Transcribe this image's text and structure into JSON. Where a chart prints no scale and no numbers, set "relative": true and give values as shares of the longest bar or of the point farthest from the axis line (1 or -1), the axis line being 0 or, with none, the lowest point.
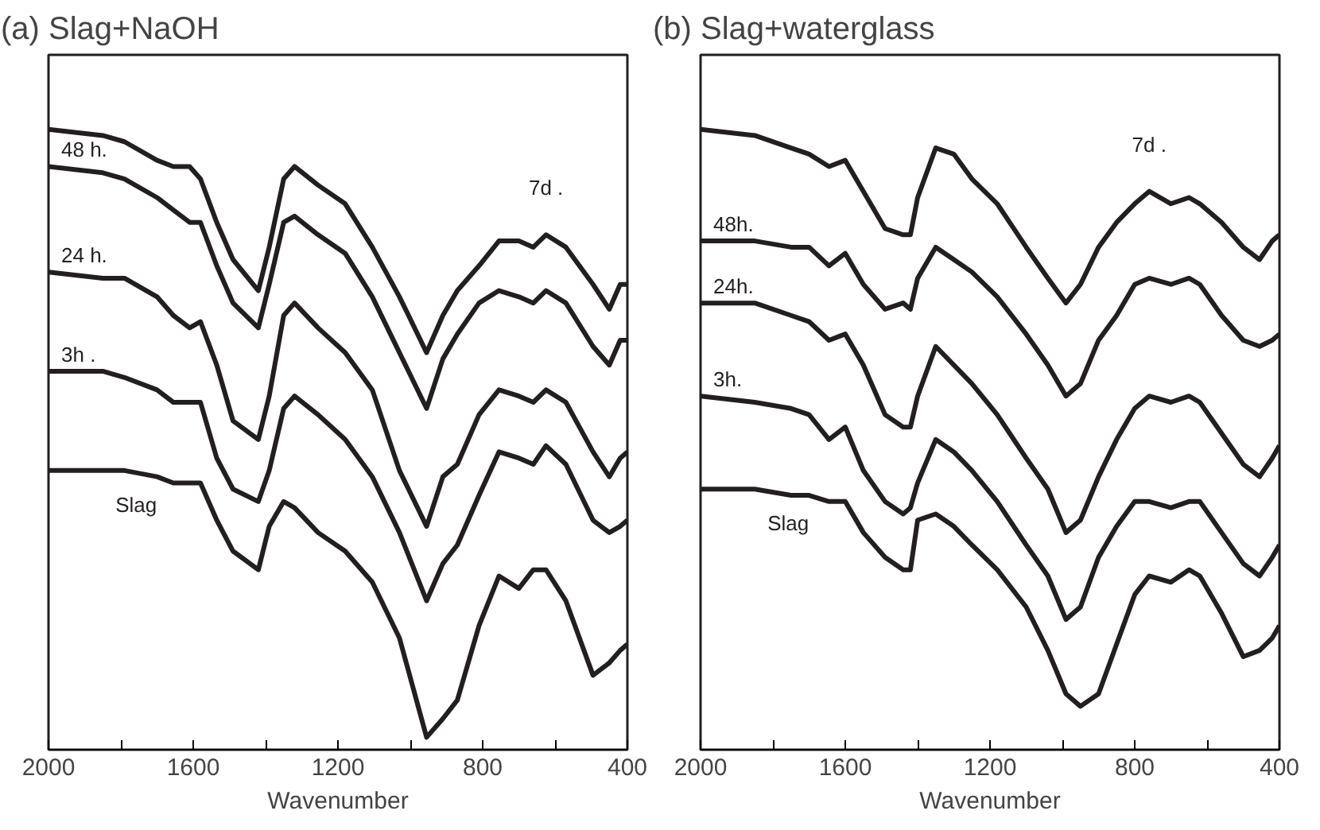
{
  "chart_data": [
    {
      "type": "line",
      "title": "(a) Slag+NaOH",
      "xlabel": "Wavenumber",
      "relative": true,
      "xlim": [
        2000,
        400
      ],
      "xticks": [
        2000,
        {
          "value": 1800,
          "label": null
        },
        1600,
        {
          "value": 1400,
          "label": null
        },
        1200,
        {
          "value": 1000,
          "label": null
        },
        800,
        {
          "value": 600,
          "label": null
        },
        400
      ],
      "x": [
        2000,
        1850,
        1790,
        1700,
        1655,
        1610,
        1580,
        1535,
        1490,
        1420,
        1390,
        1350,
        1320,
        1255,
        1180,
        1105,
        1030,
        955,
        910,
        870,
        810,
        755,
        700,
        660,
        625,
        570,
        495,
        450,
        420,
        400
      ],
      "series": [
        {
          "name": "7d .",
          "color": "#231f20",
          "values": [
            1.0,
            0.99,
            0.98,
            0.95,
            0.94,
            0.94,
            0.92,
            0.85,
            0.79,
            0.74,
            0.81,
            0.92,
            0.94,
            0.91,
            0.88,
            0.81,
            0.73,
            0.64,
            0.7,
            0.74,
            0.78,
            0.82,
            0.82,
            0.81,
            0.83,
            0.81,
            0.75,
            0.71,
            0.75,
            0.75
          ]
        },
        {
          "name": "48 h.",
          "color": "#231f20",
          "values": [
            0.94,
            0.93,
            0.92,
            0.89,
            0.87,
            0.85,
            0.85,
            0.78,
            0.72,
            0.68,
            0.75,
            0.85,
            0.86,
            0.83,
            0.8,
            0.73,
            0.64,
            0.55,
            0.63,
            0.67,
            0.72,
            0.74,
            0.73,
            0.72,
            0.74,
            0.72,
            0.65,
            0.62,
            0.66,
            0.66
          ]
        },
        {
          "name": "24 h.",
          "color": "#231f20",
          "values": [
            0.77,
            0.76,
            0.76,
            0.73,
            0.7,
            0.68,
            0.69,
            0.62,
            0.53,
            0.5,
            0.57,
            0.7,
            0.72,
            0.68,
            0.64,
            0.58,
            0.45,
            0.36,
            0.44,
            0.46,
            0.54,
            0.58,
            0.57,
            0.56,
            0.58,
            0.56,
            0.48,
            0.44,
            0.47,
            0.48
          ]
        },
        {
          "name": "3h .",
          "color": "#231f20",
          "values": [
            0.61,
            0.61,
            0.6,
            0.58,
            0.56,
            0.56,
            0.56,
            0.47,
            0.42,
            0.4,
            0.45,
            0.55,
            0.57,
            0.54,
            0.5,
            0.44,
            0.35,
            0.24,
            0.3,
            0.33,
            0.41,
            0.48,
            0.47,
            0.46,
            0.49,
            0.46,
            0.37,
            0.35,
            0.36,
            0.37
          ]
        },
        {
          "name": "Slag",
          "color": "#231f20",
          "values": [
            0.45,
            0.45,
            0.45,
            0.44,
            0.43,
            0.43,
            0.43,
            0.37,
            0.32,
            0.29,
            0.36,
            0.4,
            0.39,
            0.35,
            0.32,
            0.27,
            0.18,
            0.02,
            0.05,
            0.08,
            0.2,
            0.28,
            0.26,
            0.29,
            0.29,
            0.24,
            0.12,
            0.14,
            0.16,
            0.17
          ]
        }
      ]
    },
    {
      "type": "line",
      "title": "(b) Slag+waterglass",
      "xlabel": "Wavenumber",
      "relative": true,
      "xlim": [
        2000,
        400
      ],
      "xticks": [
        2000,
        {
          "value": 1800,
          "label": null
        },
        1600,
        {
          "value": 1400,
          "label": null
        },
        1200,
        {
          "value": 1000,
          "label": null
        },
        800,
        {
          "value": 600,
          "label": null
        },
        400
      ],
      "x": [
        2000,
        1850,
        1750,
        1700,
        1645,
        1600,
        1550,
        1490,
        1440,
        1420,
        1400,
        1350,
        1300,
        1250,
        1180,
        1100,
        1040,
        990,
        950,
        900,
        850,
        800,
        760,
        700,
        650,
        620,
        560,
        500,
        455,
        420,
        400
      ],
      "series": [
        {
          "name": "7d .",
          "color": "#231f20",
          "values": [
            1.0,
            0.99,
            0.97,
            0.96,
            0.94,
            0.95,
            0.9,
            0.84,
            0.83,
            0.83,
            0.89,
            0.97,
            0.96,
            0.92,
            0.88,
            0.81,
            0.76,
            0.72,
            0.75,
            0.81,
            0.85,
            0.88,
            0.9,
            0.88,
            0.89,
            0.88,
            0.85,
            0.81,
            0.79,
            0.82,
            0.83
          ]
        },
        {
          "name": "48h.",
          "color": "#231f20",
          "values": [
            0.82,
            0.82,
            0.81,
            0.81,
            0.78,
            0.8,
            0.75,
            0.71,
            0.72,
            0.71,
            0.76,
            0.81,
            0.79,
            0.77,
            0.73,
            0.67,
            0.62,
            0.57,
            0.59,
            0.66,
            0.7,
            0.75,
            0.76,
            0.75,
            0.76,
            0.75,
            0.7,
            0.66,
            0.65,
            0.66,
            0.67
          ]
        },
        {
          "name": "24h.",
          "color": "#231f20",
          "values": [
            0.72,
            0.72,
            0.7,
            0.69,
            0.66,
            0.67,
            0.62,
            0.54,
            0.52,
            0.52,
            0.57,
            0.65,
            0.62,
            0.59,
            0.54,
            0.47,
            0.42,
            0.35,
            0.37,
            0.44,
            0.5,
            0.55,
            0.57,
            0.56,
            0.57,
            0.56,
            0.51,
            0.46,
            0.44,
            0.47,
            0.49
          ]
        },
        {
          "name": "3h.",
          "color": "#231f20",
          "values": [
            0.57,
            0.56,
            0.55,
            0.54,
            0.5,
            0.52,
            0.45,
            0.4,
            0.38,
            0.39,
            0.43,
            0.5,
            0.48,
            0.45,
            0.4,
            0.33,
            0.28,
            0.21,
            0.23,
            0.31,
            0.36,
            0.4,
            0.4,
            0.39,
            0.4,
            0.4,
            0.35,
            0.3,
            0.28,
            0.31,
            0.33
          ]
        },
        {
          "name": "Slag",
          "color": "#231f20",
          "values": [
            0.42,
            0.42,
            0.41,
            0.41,
            0.4,
            0.4,
            0.35,
            0.31,
            0.29,
            0.29,
            0.37,
            0.38,
            0.36,
            0.33,
            0.29,
            0.23,
            0.16,
            0.09,
            0.07,
            0.09,
            0.17,
            0.25,
            0.28,
            0.27,
            0.29,
            0.28,
            0.22,
            0.15,
            0.16,
            0.18,
            0.2
          ]
        }
      ]
    }
  ]
}
